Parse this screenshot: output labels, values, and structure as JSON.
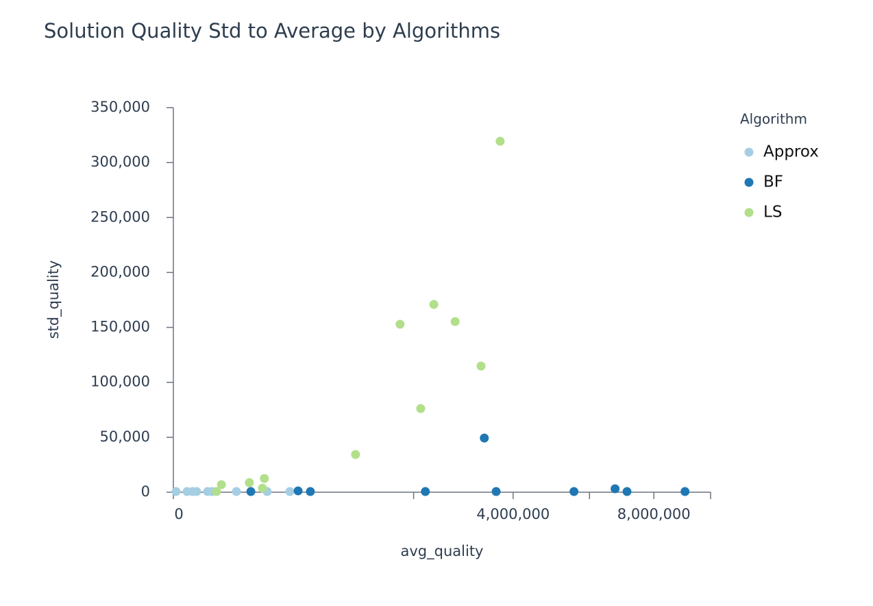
{
  "chart_data": {
    "type": "scatter",
    "title": "Solution Quality Std to Average by Algorithms",
    "x_label": "avg_quality",
    "y_label": "std_quality",
    "legend_title": "Algorithm",
    "legend_position": "right",
    "x_scale": "sqrt",
    "xlim": [
      0,
      10000000
    ],
    "xticks": [
      0,
      {
        "value": 4000000,
        "label": "4,000,000"
      },
      {
        "value": 8000000,
        "label": "8,000,000"
      }
    ],
    "xminor_ticks": [
      2000000,
      6000000,
      10000000
    ],
    "ylim": [
      0,
      350000
    ],
    "yticks": [
      0,
      {
        "value": 50000,
        "label": "50,000"
      },
      {
        "value": 100000,
        "label": "100,000"
      },
      {
        "value": 150000,
        "label": "150,000"
      },
      {
        "value": 200000,
        "label": "200,000"
      },
      {
        "value": 250000,
        "label": "250,000"
      },
      {
        "value": 300000,
        "label": "300,000"
      },
      {
        "value": 350000,
        "label": "350,000"
      }
    ],
    "series": [
      {
        "name": "Approx",
        "color": "#a6cee3",
        "x": [
          260,
          6500,
          12700,
          18800,
          40600,
          137600,
          305000,
          470000,
          52000
        ],
        "values": [
          600,
          600,
          600,
          600,
          600,
          600,
          600,
          600,
          600
        ]
      },
      {
        "name": "BF",
        "color": "#1f78b4",
        "x": [
          3350000,
          6760000,
          7130000,
          9070000,
          5560000,
          3610000,
          2200000,
          650000,
          539000,
          208000
        ],
        "values": [
          49300,
          3100,
          600,
          600,
          600,
          600,
          600,
          600,
          1200,
          600
        ]
      },
      {
        "name": "LS",
        "color": "#b2df8a",
        "x": [
          3700000,
          1780000,
          2350000,
          2750000,
          3280000,
          2120000,
          1150000,
          287000,
          200000,
          275000,
          80000,
          64500
        ],
        "values": [
          319400,
          152850,
          170900,
          155300,
          114800,
          76100,
          34300,
          12500,
          8700,
          3700,
          6900,
          600
        ]
      }
    ]
  }
}
